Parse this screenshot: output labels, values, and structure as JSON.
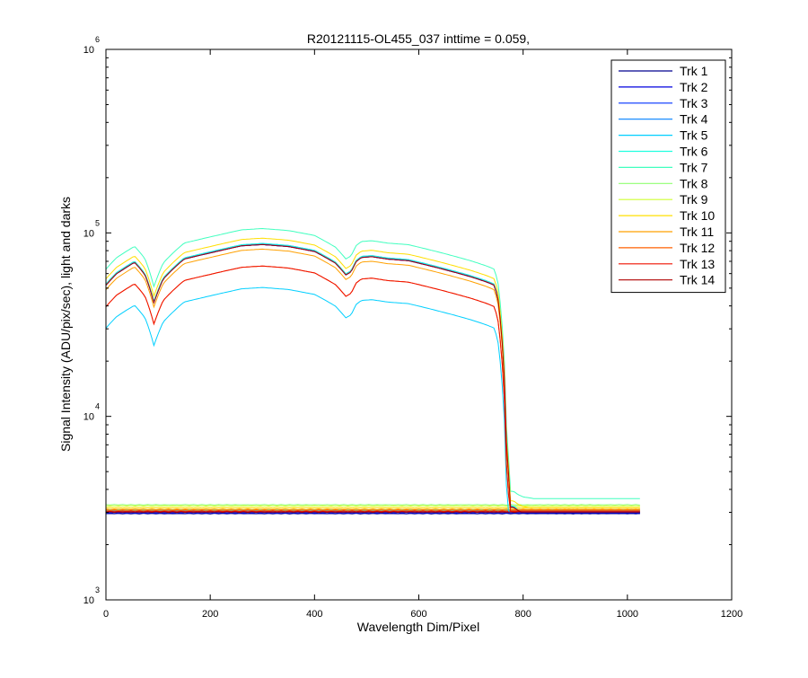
{
  "chart_data": {
    "type": "line",
    "title": "R20121115-OL455_037 inttime = 0.059,",
    "xlabel": "Wavelength Dim/Pixel",
    "ylabel": "Signal Intensity (ADU/pix/sec), light and darks",
    "xlim": [
      0,
      1200
    ],
    "ylim": [
      1000,
      1000000
    ],
    "yscale": "log",
    "x_ticks": [
      0,
      200,
      400,
      600,
      800,
      1000,
      1200
    ],
    "x_tick_labels": [
      "0",
      "200",
      "400",
      "600",
      "800",
      "1000",
      "1200"
    ],
    "y_ticks": [
      {
        "value": 1000,
        "base": "10",
        "exp": "3"
      },
      {
        "value": 10000,
        "base": "10",
        "exp": "4"
      },
      {
        "value": 100000,
        "base": "10",
        "exp": "5"
      },
      {
        "value": 1000000,
        "base": "10",
        "exp": "6"
      }
    ],
    "grid": false,
    "legend_position": "top-right",
    "shape_x": [
      0,
      20,
      55,
      75,
      92,
      110,
      150,
      200,
      260,
      300,
      350,
      400,
      440,
      460,
      470,
      480,
      490,
      510,
      540,
      580,
      620,
      660,
      700,
      730,
      745,
      752,
      760,
      768,
      775,
      782,
      790,
      800,
      820,
      850,
      880,
      900,
      950,
      1000,
      1024
    ],
    "shape_rel": [
      0.72,
      0.83,
      0.96,
      0.82,
      0.58,
      0.78,
      1.0,
      1.08,
      1.18,
      1.2,
      1.17,
      1.1,
      0.95,
      0.82,
      0.85,
      0.97,
      1.02,
      1.03,
      1.0,
      0.98,
      0.92,
      0.86,
      0.8,
      0.75,
      0.72,
      0.6,
      0.35,
      0.1,
      0.0444,
      0.0444,
      0.0426,
      0.0414,
      0.0405,
      0.0405,
      0.0405,
      0.0405,
      0.0405,
      0.0405,
      0.0405
    ],
    "series": [
      {
        "name": "Trk 1",
        "color": "#00008f",
        "scale": 72000,
        "dark": 2950
      },
      {
        "name": "Trk 2",
        "color": "#0000df",
        "scale": 72000,
        "dark": 2980
      },
      {
        "name": "Trk 3",
        "color": "#0030ff",
        "scale": 72500,
        "dark": 3000
      },
      {
        "name": "Trk 4",
        "color": "#0080ff",
        "scale": 73000,
        "dark": 3020
      },
      {
        "name": "Trk 5",
        "color": "#00cfff",
        "scale": 42000,
        "dark": 3050
      },
      {
        "name": "Trk 6",
        "color": "#20ffdf",
        "scale": 73000,
        "dark": 3070
      },
      {
        "name": "Trk 7",
        "color": "#40ffbf",
        "scale": 88000,
        "dark": 3100
      },
      {
        "name": "Trk 8",
        "color": "#8fff70",
        "scale": 0,
        "dark": 3300
      },
      {
        "name": "Trk 9",
        "color": "#cfff30",
        "scale": 0,
        "dark": 3250
      },
      {
        "name": "Trk 10",
        "color": "#ffdf00",
        "scale": 78000,
        "dark": 3180
      },
      {
        "name": "Trk 11",
        "color": "#ffa000",
        "scale": 68000,
        "dark": 3120
      },
      {
        "name": "Trk 12",
        "color": "#ff6000",
        "scale": 55000,
        "dark": 3080
      },
      {
        "name": "Trk 13",
        "color": "#ef1000",
        "scale": 55000,
        "dark": 3040
      },
      {
        "name": "Trk 14",
        "color": "#b00000",
        "scale": 72000,
        "dark": 3010
      }
    ]
  }
}
